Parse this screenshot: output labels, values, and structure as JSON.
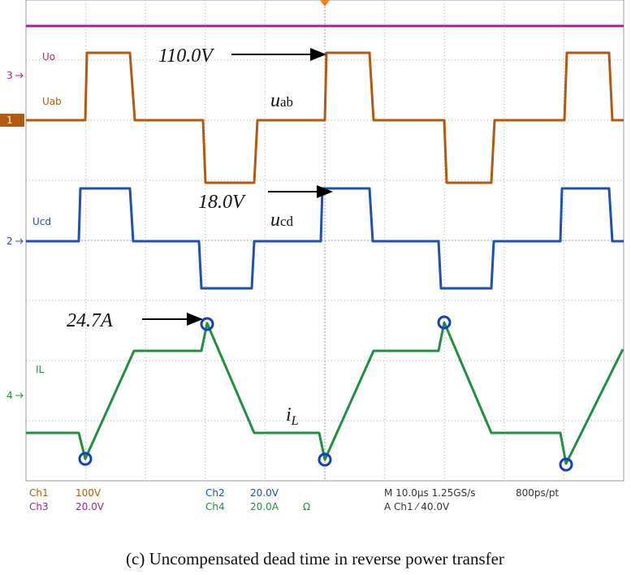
{
  "figure": {
    "channel_labels": [
      "Uo",
      "Uab",
      "Ucd",
      "IL"
    ],
    "markers": [
      "3",
      "1",
      "2",
      "4"
    ],
    "annotations": {
      "uo": "110.0V",
      "uab": "u",
      "uab_sub": "ab",
      "ucd_v": "18.0V",
      "ucd": "u",
      "ucd_sub": "cd",
      "il_v": "24.7A",
      "il": "i",
      "il_sub": "L"
    },
    "status": {
      "ch1": "Ch1",
      "ch1_scale": "100V",
      "ch3": "Ch3",
      "ch3_scale": "20.0V",
      "ch2": "Ch2",
      "ch2_scale": "20.0V",
      "ch4": "Ch4",
      "ch4_scale": "20.0A",
      "ch4_unit": "Ω",
      "timebase": "M 10.0µs 1.25GS/s",
      "resolution": "800ps/pt",
      "trigger": "A Ch1 ⁄ 40.0V"
    },
    "caption": "(c) Uncompensated dead time in reverse power transfer"
  }
}
